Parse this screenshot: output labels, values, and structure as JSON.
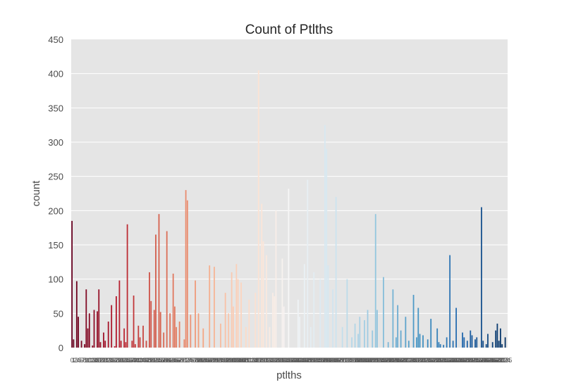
{
  "chart_data": {
    "type": "bar",
    "title": "Count of Ptlths",
    "xlabel": "ptlths",
    "ylabel": "count",
    "ylim": [
      0,
      450
    ],
    "yticks": [
      0,
      50,
      100,
      150,
      200,
      250,
      300,
      350,
      400,
      450
    ],
    "grid": true,
    "legend": "none",
    "palette": [
      "#67001f",
      "#b2182b",
      "#d6604d",
      "#f4a582",
      "#fddbc7",
      "#f7f7f7",
      "#d1e5f0",
      "#92c5de",
      "#4393c3",
      "#2166ac",
      "#053061"
    ],
    "values": [
      185,
      12,
      0,
      97,
      45,
      0,
      10,
      0,
      5,
      85,
      28,
      50,
      0,
      3,
      55,
      0,
      53,
      85,
      8,
      0,
      22,
      10,
      0,
      38,
      0,
      62,
      0,
      2,
      75,
      0,
      98,
      10,
      0,
      28,
      8,
      180,
      0,
      0,
      10,
      76,
      5,
      0,
      32,
      15,
      0,
      32,
      0,
      10,
      0,
      110,
      68,
      0,
      55,
      165,
      0,
      195,
      52,
      0,
      22,
      0,
      170,
      0,
      50,
      0,
      108,
      60,
      30,
      0,
      38,
      0,
      0,
      12,
      230,
      215,
      0,
      48,
      0,
      0,
      98,
      0,
      50,
      0,
      0,
      28,
      0,
      0,
      0,
      120,
      0,
      0,
      118,
      0,
      0,
      0,
      35,
      0,
      0,
      80,
      0,
      50,
      0,
      110,
      60,
      0,
      122,
      100,
      0,
      95,
      0,
      0,
      30,
      0,
      70,
      0,
      0,
      0,
      80,
      0,
      405,
      0,
      210,
      155,
      0,
      135,
      0,
      30,
      0,
      80,
      75,
      200,
      0,
      0,
      0,
      130,
      60,
      0,
      0,
      232,
      0,
      0,
      0,
      0,
      0,
      70,
      45,
      0,
      0,
      122,
      0,
      245,
      0,
      30,
      0,
      110,
      0,
      0,
      0,
      100,
      0,
      0,
      325,
      290,
      120,
      0,
      0,
      85,
      0,
      220,
      0,
      0,
      0,
      30,
      0,
      0,
      100,
      0,
      0,
      15,
      0,
      35,
      0,
      20,
      45,
      0,
      0,
      40,
      0,
      55,
      0,
      0,
      25,
      0,
      195,
      55,
      0,
      0,
      0,
      103,
      0,
      0,
      8,
      0,
      0,
      85,
      0,
      15,
      62,
      0,
      25,
      0,
      0,
      45,
      0,
      10,
      0,
      0,
      77,
      0,
      15,
      58,
      20,
      0,
      18,
      0,
      0,
      12,
      0,
      42,
      0,
      0,
      0,
      28,
      8,
      5,
      0,
      4,
      0,
      15,
      0,
      135,
      0,
      10,
      0,
      58,
      0,
      0,
      0,
      22,
      15,
      0,
      10,
      0,
      25,
      18,
      0,
      12,
      15,
      0,
      0,
      205,
      10,
      0,
      5,
      20,
      0,
      0,
      8,
      0,
      25,
      35,
      10,
      28,
      5,
      0,
      15,
      0
    ]
  }
}
